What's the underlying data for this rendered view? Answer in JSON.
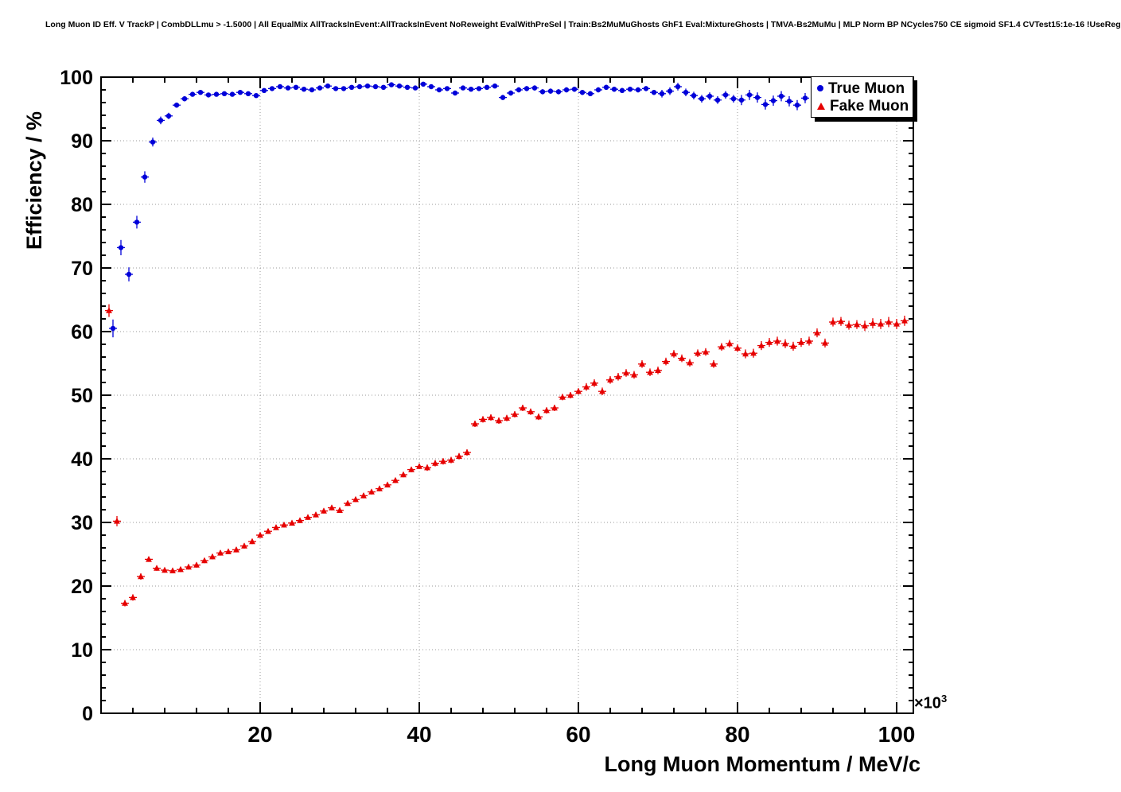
{
  "page": {
    "title": "Long Muon ID Eff. V TrackP | CombDLLmu > -1.5000 | All EqualMix AllTracksInEvent:AllTracksInEvent NoReweight EvalWithPreSel | Train:Bs2MuMuGhosts GhF1 Eval:MixtureGhosts | TMVA-Bs2MuMu | MLP Norm BP NCycles750 CE sigmoid SF1.4 CVTest15:1e-16 !UseReg"
  },
  "axes": {
    "y_title": "Efficiency / %",
    "x_title": "Long Muon Momentum / MeV/c",
    "x_exponent_base": "×10",
    "x_exponent_power": "3",
    "y_tick_labels": [
      "0",
      "10",
      "20",
      "30",
      "40",
      "50",
      "60",
      "70",
      "80",
      "90",
      "100"
    ],
    "x_tick_labels": [
      "20",
      "40",
      "60",
      "80",
      "100"
    ]
  },
  "legend": {
    "items": [
      {
        "label": "True Muon",
        "marker": "circle",
        "color": "#0000d9"
      },
      {
        "label": "Fake Muon",
        "marker": "triangle",
        "color": "#e60000"
      }
    ]
  },
  "chart_data": {
    "type": "scatter",
    "title": "Long Muon ID Eff. V TrackP | CombDLLmu > -1.5000 | All EqualMix AllTracksInEvent:AllTracksInEvent NoReweight EvalWithPreSel | Train:Bs2MuMuGhosts GhF1 Eval:MixtureGhosts | TMVA-Bs2MuMu | MLP Norm BP NCycles750 CE sigmoid SF1.4 CVTest15:1e-16 !UseReg",
    "xlabel": "Long Muon Momentum / MeV/c",
    "ylabel": "Efficiency / %",
    "x_unit": "1e3 MeV/c",
    "xlim": [
      0,
      102.1
    ],
    "ylim": [
      0,
      100
    ],
    "grid": true,
    "legend_position": "top-right",
    "series": [
      {
        "name": "True Muon",
        "marker": "circle",
        "color": "#0000d9",
        "x": [
          1.5,
          2.5,
          3.5,
          4.5,
          5.5,
          6.5,
          7.5,
          8.5,
          9.5,
          10.5,
          11.5,
          12.5,
          13.5,
          14.5,
          15.5,
          16.5,
          17.5,
          18.5,
          19.5,
          20.5,
          21.5,
          22.5,
          23.5,
          24.5,
          25.5,
          26.5,
          27.5,
          28.5,
          29.5,
          30.5,
          31.5,
          32.5,
          33.5,
          34.5,
          35.5,
          36.5,
          37.5,
          38.5,
          39.5,
          40.5,
          41.5,
          42.5,
          43.5,
          44.5,
          45.5,
          46.5,
          47.5,
          48.5,
          49.5,
          50.5,
          51.5,
          52.5,
          53.5,
          54.5,
          55.5,
          56.5,
          57.5,
          58.5,
          59.5,
          60.5,
          61.5,
          62.5,
          63.5,
          64.5,
          65.5,
          66.5,
          67.5,
          68.5,
          69.5,
          70.5,
          71.5,
          72.5,
          73.5,
          74.5,
          75.5,
          76.5,
          77.5,
          78.5,
          79.5,
          80.5,
          81.5,
          82.5,
          83.5,
          84.5,
          85.5,
          86.5,
          87.5,
          88.5
        ],
        "y": [
          60.5,
          73.2,
          69.0,
          77.2,
          84.3,
          89.8,
          93.2,
          93.9,
          95.6,
          96.6,
          97.3,
          97.6,
          97.2,
          97.3,
          97.4,
          97.3,
          97.6,
          97.4,
          97.1,
          97.9,
          98.2,
          98.5,
          98.3,
          98.4,
          98.1,
          98.0,
          98.3,
          98.6,
          98.2,
          98.2,
          98.4,
          98.5,
          98.6,
          98.5,
          98.4,
          98.8,
          98.6,
          98.4,
          98.3,
          98.9,
          98.5,
          98.0,
          98.2,
          97.5,
          98.3,
          98.1,
          98.2,
          98.4,
          98.6,
          96.8,
          97.5,
          98.0,
          98.2,
          98.3,
          97.7,
          97.8,
          97.7,
          98.0,
          98.1,
          97.6,
          97.4,
          98.0,
          98.4,
          98.1,
          97.9,
          98.1,
          98.0,
          98.2,
          97.6,
          97.4,
          97.8,
          98.5,
          97.6,
          97.1,
          96.6,
          97.0,
          96.4,
          97.2,
          96.6,
          96.4,
          97.2,
          96.8,
          95.7,
          96.3,
          97.0,
          96.2,
          95.6,
          96.7
        ],
        "ey": [
          1.4,
          1.2,
          1.1,
          1.0,
          0.9,
          0.7,
          0.6,
          0.5,
          0.4,
          0.4,
          0.3,
          0.3,
          0.3,
          0.3,
          0.3,
          0.3,
          0.3,
          0.3,
          0.3,
          0.3,
          0.3,
          0.3,
          0.3,
          0.3,
          0.3,
          0.3,
          0.3,
          0.3,
          0.3,
          0.3,
          0.3,
          0.3,
          0.3,
          0.3,
          0.3,
          0.3,
          0.3,
          0.3,
          0.3,
          0.3,
          0.3,
          0.3,
          0.3,
          0.3,
          0.3,
          0.3,
          0.3,
          0.3,
          0.3,
          0.4,
          0.4,
          0.4,
          0.4,
          0.4,
          0.4,
          0.4,
          0.4,
          0.4,
          0.4,
          0.4,
          0.4,
          0.4,
          0.4,
          0.4,
          0.4,
          0.4,
          0.4,
          0.4,
          0.4,
          0.6,
          0.6,
          0.6,
          0.6,
          0.6,
          0.6,
          0.6,
          0.6,
          0.6,
          0.6,
          0.8,
          0.8,
          0.8,
          0.8,
          0.8,
          0.8,
          0.8,
          0.8,
          0.8
        ]
      },
      {
        "name": "Fake Muon",
        "marker": "triangle",
        "color": "#e60000",
        "x": [
          1,
          2,
          3,
          4,
          5,
          6,
          7,
          8,
          9,
          10,
          11,
          12,
          13,
          14,
          15,
          16,
          17,
          18,
          19,
          20,
          21,
          22,
          23,
          24,
          25,
          26,
          27,
          28,
          29,
          30,
          31,
          32,
          33,
          34,
          35,
          36,
          37,
          38,
          39,
          40,
          41,
          42,
          43,
          44,
          45,
          46,
          47,
          48,
          49,
          50,
          51,
          52,
          53,
          54,
          55,
          56,
          57,
          58,
          59,
          60,
          61,
          62,
          63,
          64,
          65,
          66,
          67,
          68,
          69,
          70,
          71,
          72,
          73,
          74,
          75,
          76,
          77,
          78,
          79,
          80,
          81,
          82,
          83,
          84,
          85,
          86,
          87,
          88,
          89,
          90,
          91,
          92,
          93,
          94,
          95,
          96,
          97,
          98,
          99,
          100,
          101
        ],
        "y": [
          63.3,
          30.2,
          17.3,
          18.2,
          21.5,
          24.2,
          22.8,
          22.5,
          22.4,
          22.6,
          23.0,
          23.3,
          24.0,
          24.6,
          25.2,
          25.4,
          25.7,
          26.3,
          27.0,
          28.0,
          28.6,
          29.2,
          29.6,
          29.9,
          30.3,
          30.8,
          31.2,
          31.8,
          32.3,
          31.9,
          33.0,
          33.6,
          34.2,
          34.8,
          35.3,
          35.9,
          36.6,
          37.5,
          38.3,
          38.8,
          38.6,
          39.3,
          39.6,
          39.8,
          40.4,
          41.0,
          45.5,
          46.2,
          46.5,
          46.0,
          46.4,
          47.0,
          48.0,
          47.4,
          46.6,
          47.6,
          48.0,
          49.7,
          50.0,
          50.6,
          51.3,
          51.9,
          50.6,
          52.4,
          52.9,
          53.5,
          53.2,
          54.9,
          53.6,
          53.9,
          55.3,
          56.5,
          55.8,
          55.1,
          56.6,
          56.8,
          54.9,
          57.6,
          58.1,
          57.4,
          56.5,
          56.6,
          57.8,
          58.3,
          58.5,
          58.1,
          57.7,
          58.3,
          58.5,
          59.8,
          58.2,
          61.5,
          61.6,
          61.0,
          61.1,
          60.9,
          61.3,
          61.2,
          61.5,
          61.2,
          61.7
        ],
        "ey": [
          1.0,
          0.8,
          0.5,
          0.5,
          0.5,
          0.4,
          0.4,
          0.4,
          0.4,
          0.4,
          0.4,
          0.4,
          0.4,
          0.4,
          0.4,
          0.4,
          0.4,
          0.4,
          0.4,
          0.4,
          0.4,
          0.4,
          0.4,
          0.4,
          0.4,
          0.4,
          0.4,
          0.4,
          0.4,
          0.4,
          0.4,
          0.4,
          0.4,
          0.4,
          0.4,
          0.4,
          0.4,
          0.4,
          0.4,
          0.4,
          0.5,
          0.5,
          0.5,
          0.5,
          0.5,
          0.5,
          0.5,
          0.5,
          0.5,
          0.5,
          0.5,
          0.5,
          0.5,
          0.5,
          0.5,
          0.5,
          0.5,
          0.5,
          0.5,
          0.5,
          0.6,
          0.6,
          0.6,
          0.6,
          0.6,
          0.6,
          0.6,
          0.6,
          0.6,
          0.6,
          0.6,
          0.6,
          0.6,
          0.6,
          0.6,
          0.6,
          0.6,
          0.6,
          0.6,
          0.6,
          0.7,
          0.7,
          0.7,
          0.7,
          0.7,
          0.7,
          0.7,
          0.7,
          0.7,
          0.7,
          0.7,
          0.7,
          0.7,
          0.7,
          0.7,
          0.8,
          0.8,
          0.8,
          0.8,
          0.8,
          0.8
        ]
      }
    ]
  }
}
